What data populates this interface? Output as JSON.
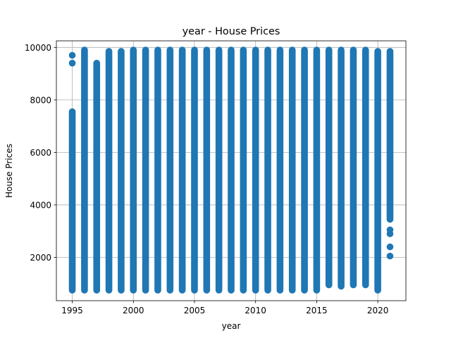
{
  "chart_data": {
    "type": "scatter",
    "title": "year - House Prices",
    "xlabel": "year",
    "ylabel": "House Prices",
    "xlim": [
      1993.7,
      2022.3
    ],
    "ylim": [
      350,
      10250
    ],
    "xticks": [
      1995,
      2000,
      2005,
      2010,
      2015,
      2020
    ],
    "yticks": [
      2000,
      4000,
      6000,
      8000,
      10000
    ],
    "grid": true,
    "marker_color": "#1f77b4",
    "columns": [
      {
        "x": 1995,
        "y_min": 750,
        "y_max": 7550,
        "outliers": [
          9400,
          9700
        ]
      },
      {
        "x": 1996,
        "y_min": 750,
        "y_max": 9900
      },
      {
        "x": 1997,
        "y_min": 750,
        "y_max": 9400
      },
      {
        "x": 1998,
        "y_min": 750,
        "y_max": 9850
      },
      {
        "x": 1999,
        "y_min": 750,
        "y_max": 9850
      },
      {
        "x": 2000,
        "y_min": 750,
        "y_max": 9900
      },
      {
        "x": 2001,
        "y_min": 750,
        "y_max": 9900
      },
      {
        "x": 2002,
        "y_min": 750,
        "y_max": 9900
      },
      {
        "x": 2003,
        "y_min": 750,
        "y_max": 9900
      },
      {
        "x": 2004,
        "y_min": 750,
        "y_max": 9900
      },
      {
        "x": 2005,
        "y_min": 750,
        "y_max": 9900
      },
      {
        "x": 2006,
        "y_min": 750,
        "y_max": 9900
      },
      {
        "x": 2007,
        "y_min": 750,
        "y_max": 9900
      },
      {
        "x": 2008,
        "y_min": 750,
        "y_max": 9900
      },
      {
        "x": 2009,
        "y_min": 750,
        "y_max": 9900
      },
      {
        "x": 2010,
        "y_min": 750,
        "y_max": 9900
      },
      {
        "x": 2011,
        "y_min": 750,
        "y_max": 9900
      },
      {
        "x": 2012,
        "y_min": 750,
        "y_max": 9900
      },
      {
        "x": 2013,
        "y_min": 750,
        "y_max": 9900
      },
      {
        "x": 2014,
        "y_min": 750,
        "y_max": 9900
      },
      {
        "x": 2015,
        "y_min": 750,
        "y_max": 9900
      },
      {
        "x": 2016,
        "y_min": 950,
        "y_max": 9900
      },
      {
        "x": 2017,
        "y_min": 900,
        "y_max": 9900
      },
      {
        "x": 2018,
        "y_min": 950,
        "y_max": 9900
      },
      {
        "x": 2019,
        "y_min": 950,
        "y_max": 9900
      },
      {
        "x": 2020,
        "y_min": 750,
        "y_max": 9850
      },
      {
        "x": 2021,
        "y_min": 3450,
        "y_max": 9850,
        "outliers": [
          2050,
          2400,
          2900,
          3050
        ]
      }
    ]
  }
}
